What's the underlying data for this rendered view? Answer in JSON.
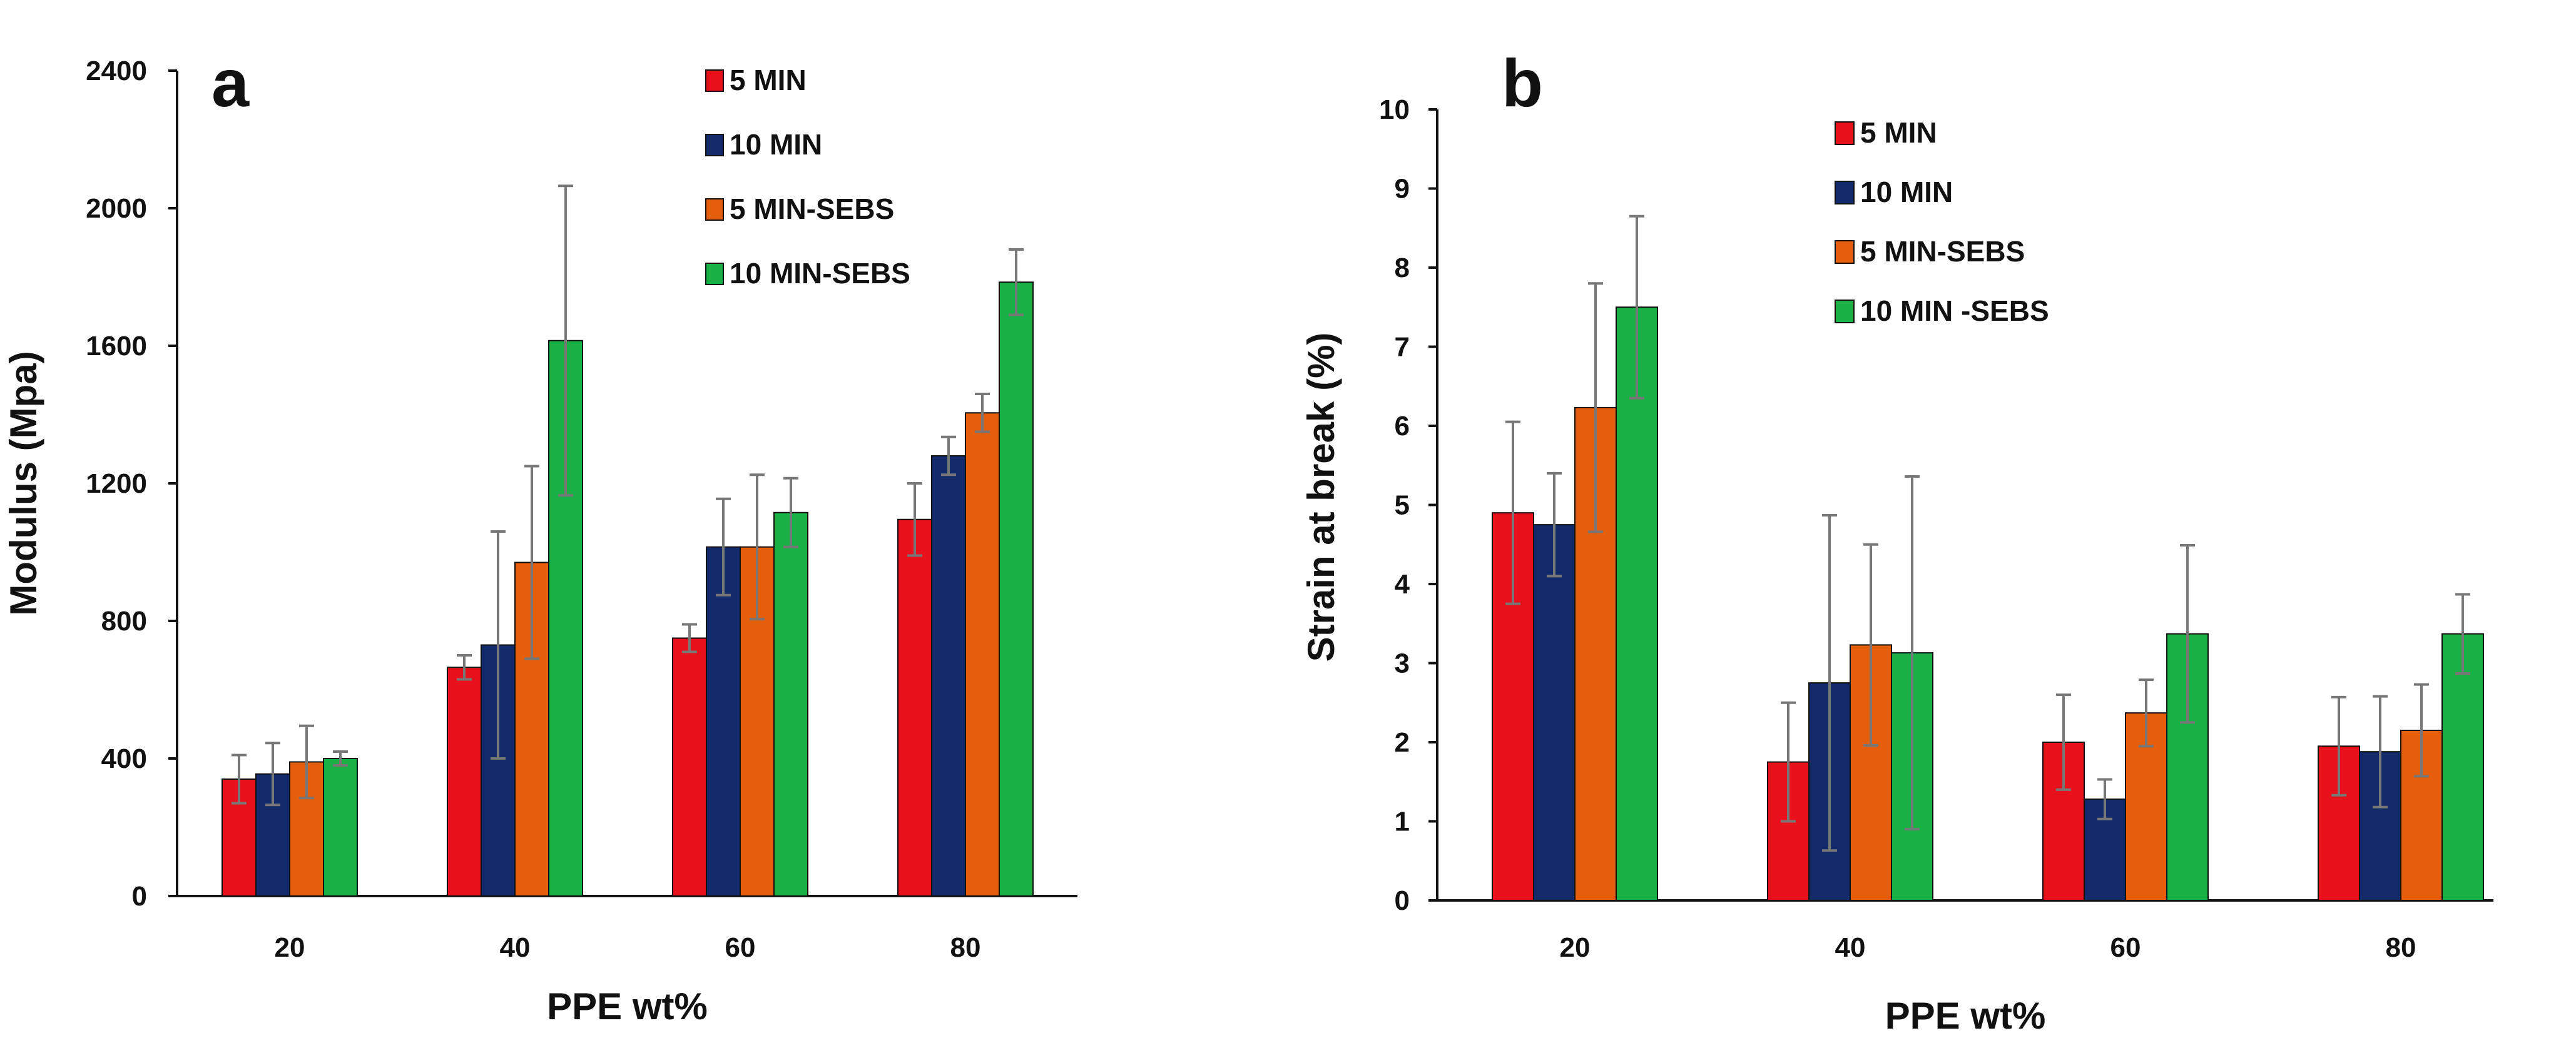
{
  "colors": {
    "5 MIN": "#e8101a",
    "10 MIN": "#132a6a",
    "5 MIN-SEBS": "#e45e0b",
    "10 MIN-SEBS": "#19b146",
    "error_bar": "#777777",
    "axis": "#111111"
  },
  "chart_data": [
    {
      "type": "bar",
      "panel_label": "a",
      "title": "",
      "xlabel": "PPE wt%",
      "ylabel": "Modulus (Mpa)",
      "categories": [
        "20",
        "40",
        "60",
        "80"
      ],
      "ylim": [
        0,
        2400
      ],
      "yticks": [
        0,
        400,
        800,
        1200,
        1600,
        2000,
        2400
      ],
      "legend_position": "top-center",
      "series": [
        {
          "name": "5 MIN",
          "color_key": "5 MIN",
          "values": [
            340,
            665,
            750,
            1095
          ],
          "errors": [
            70,
            35,
            40,
            105
          ]
        },
        {
          "name": "10 MIN",
          "color_key": "10 MIN",
          "values": [
            355,
            730,
            1015,
            1280
          ],
          "errors": [
            90,
            330,
            140,
            55
          ]
        },
        {
          "name": "5 MIN-SEBS",
          "color_key": "5 MIN-SEBS",
          "values": [
            390,
            970,
            1015,
            1405
          ],
          "errors": [
            105,
            280,
            210,
            55
          ]
        },
        {
          "name": "10 MIN-SEBS",
          "color_key": "10 MIN-SEBS",
          "values": [
            400,
            1615,
            1115,
            1785
          ],
          "errors": [
            20,
            450,
            100,
            95
          ]
        }
      ]
    },
    {
      "type": "bar",
      "panel_label": "b",
      "title": "",
      "xlabel": "PPE wt%",
      "ylabel": "Strain at break (%)",
      "categories": [
        "20",
        "40",
        "60",
        "80"
      ],
      "ylim": [
        0,
        10
      ],
      "yticks": [
        0,
        1,
        2,
        3,
        4,
        5,
        6,
        7,
        8,
        9,
        10
      ],
      "legend_position": "top-center",
      "series": [
        {
          "name": "5 MIN",
          "color_key": "5 MIN",
          "values": [
            4.9,
            1.75,
            2.0,
            1.95
          ],
          "errors": [
            1.15,
            0.75,
            0.6,
            0.62
          ]
        },
        {
          "name": "10 MIN",
          "color_key": "10 MIN",
          "values": [
            4.75,
            2.75,
            1.28,
            1.88
          ],
          "errors": [
            0.65,
            2.12,
            0.25,
            0.7
          ]
        },
        {
          "name": "5 MIN-SEBS",
          "color_key": "5 MIN-SEBS",
          "values": [
            6.23,
            3.23,
            2.37,
            2.15
          ],
          "errors": [
            1.57,
            1.27,
            0.42,
            0.58
          ]
        },
        {
          "name": "10 MIN -SEBS",
          "color_key": "10 MIN-SEBS",
          "values": [
            7.5,
            3.13,
            3.37,
            3.37
          ],
          "errors": [
            1.15,
            2.23,
            1.12,
            0.5
          ]
        }
      ]
    }
  ]
}
